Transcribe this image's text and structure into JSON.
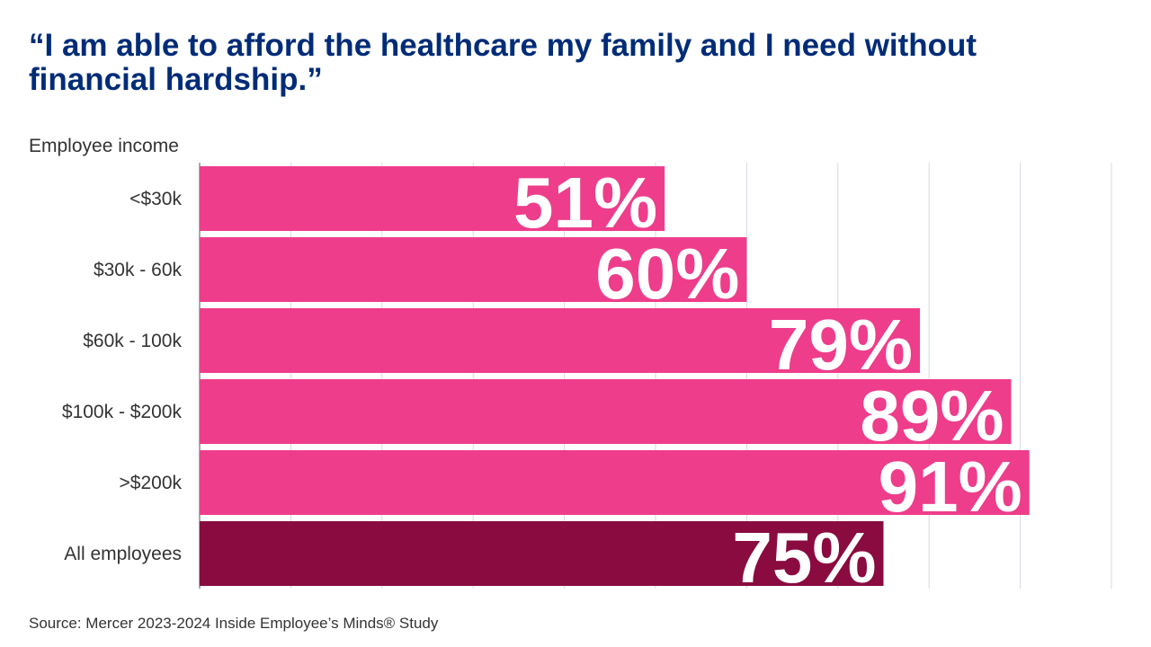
{
  "chart_data": {
    "type": "bar",
    "orientation": "horizontal",
    "title": "“I am able to afford the healthcare my family and I need without financial hardship.”",
    "ylabel": "Employee income",
    "xlabel": "",
    "categories": [
      "<$30k",
      "$30k - 60k",
      "$60k - 100k",
      "$100k - $200k",
      ">$200k",
      "All employees"
    ],
    "values": [
      51,
      60,
      79,
      89,
      91,
      75
    ],
    "data_labels": [
      "51%",
      "60%",
      "79%",
      "89%",
      "91%",
      "75%"
    ],
    "xlim": [
      0,
      100
    ],
    "grid": true,
    "colors": {
      "income_bars": "#EE3D8B",
      "all_employees_bar": "#8A0B40",
      "title": "#002C77"
    }
  },
  "source": "Source: Mercer 2023-2024 Inside Employee’s Minds® Study"
}
